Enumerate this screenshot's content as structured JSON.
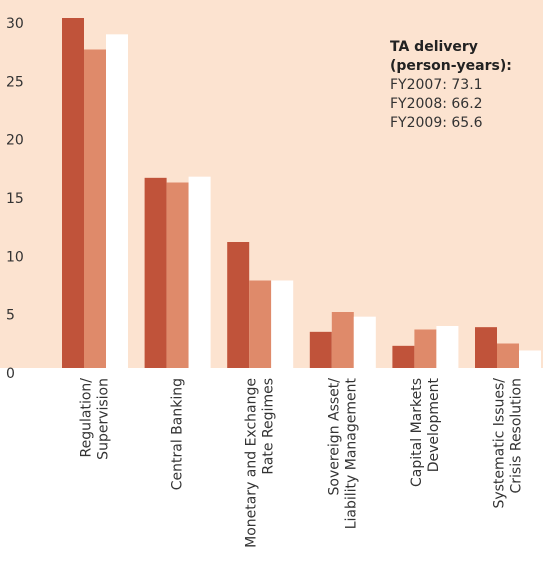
{
  "chart_data": {
    "type": "bar",
    "categories": [
      [
        "Regulation/",
        "Supervision"
      ],
      [
        "Central Banking"
      ],
      [
        "Monetary and Exchange",
        "Rate Regimes"
      ],
      [
        "Sovereign Asset/",
        "Liability Management"
      ],
      [
        "Capital Markets",
        "Development"
      ],
      [
        "Systematic Issues/",
        "Crisis Resolution"
      ]
    ],
    "series": [
      {
        "color": "#c0533a",
        "values": [
          30,
          16.3,
          10.8,
          3.1,
          1.9,
          3.5
        ]
      },
      {
        "color": "#df8a6a",
        "values": [
          27.3,
          15.9,
          7.5,
          4.8,
          3.3,
          2.1
        ]
      },
      {
        "color": "#ffffff",
        "values": [
          28.6,
          16.4,
          7.5,
          4.4,
          3.6,
          1.5
        ]
      }
    ],
    "ylim": [
      0,
      30
    ],
    "yticks": [
      0,
      5,
      10,
      15,
      20,
      25,
      30
    ],
    "annotation": {
      "title": [
        "TA delivery",
        "(person-years):"
      ],
      "lines": [
        "FY2007: 73.1",
        "FY2008: 66.2",
        "FY2009: 65.6"
      ]
    },
    "background": "#fce3d0"
  }
}
